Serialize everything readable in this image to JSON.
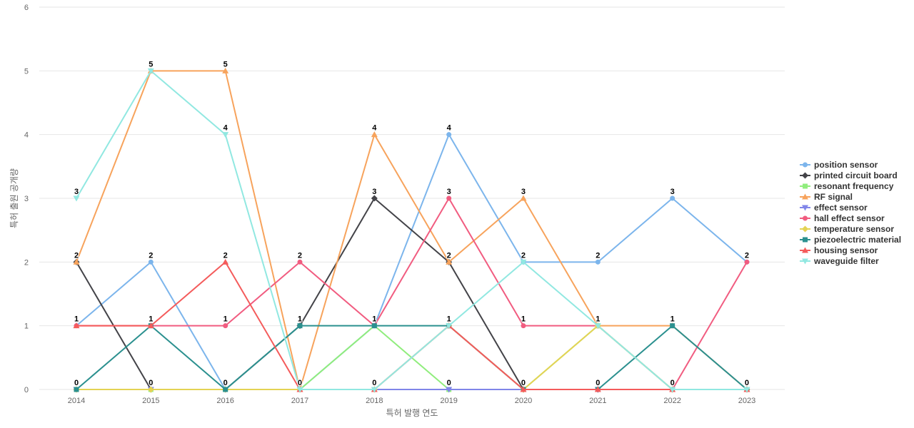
{
  "chart_data": {
    "type": "line",
    "title": "",
    "xlabel": "특허 발행 연도",
    "ylabel": "특허 출원 공개량",
    "x": [
      "2014",
      "2015",
      "2016",
      "2017",
      "2018",
      "2019",
      "2020",
      "2021",
      "2022",
      "2023"
    ],
    "ylim": [
      0,
      6
    ],
    "yticks": [
      "0",
      "1",
      "2",
      "3",
      "4",
      "5",
      "6"
    ],
    "grid": true,
    "legend_position": "right",
    "series": [
      {
        "name": "position sensor",
        "color": "#7cb5ec",
        "marker": "circle",
        "values": [
          1,
          2,
          0,
          0,
          1,
          4,
          2,
          2,
          3,
          2
        ]
      },
      {
        "name": "printed circuit board",
        "color": "#434348",
        "marker": "diamond",
        "values": [
          2,
          0,
          0,
          1,
          3,
          2,
          0,
          0,
          0,
          0
        ]
      },
      {
        "name": "resonant frequency",
        "color": "#90ed7d",
        "marker": "square",
        "values": [
          0,
          0,
          0,
          0,
          1,
          0,
          0,
          1,
          0,
          0
        ]
      },
      {
        "name": "RF signal",
        "color": "#f7a35c",
        "marker": "triangle",
        "values": [
          2,
          5,
          5,
          0,
          4,
          2,
          3,
          1,
          1,
          0
        ]
      },
      {
        "name": "effect sensor",
        "color": "#8085e9",
        "marker": "triangle-down",
        "values": [
          0,
          0,
          0,
          0,
          0,
          0,
          0,
          0,
          0,
          0
        ]
      },
      {
        "name": "hall effect sensor",
        "color": "#f15c80",
        "marker": "circle",
        "values": [
          1,
          1,
          1,
          2,
          1,
          3,
          1,
          1,
          0,
          2
        ]
      },
      {
        "name": "temperature sensor",
        "color": "#e4d354",
        "marker": "diamond",
        "values": [
          0,
          0,
          0,
          0,
          0,
          1,
          0,
          1,
          0,
          0
        ]
      },
      {
        "name": "piezoelectric material",
        "color": "#2b908f",
        "marker": "square",
        "values": [
          0,
          1,
          0,
          1,
          1,
          1,
          0,
          0,
          1,
          0
        ]
      },
      {
        "name": "housing sensor",
        "color": "#f45b5b",
        "marker": "triangle",
        "values": [
          1,
          1,
          2,
          0,
          0,
          1,
          0,
          0,
          0,
          0
        ]
      },
      {
        "name": "waveguide filter",
        "color": "#91e8e1",
        "marker": "triangle-down",
        "values": [
          3,
          5,
          4,
          0,
          0,
          1,
          2,
          1,
          0,
          0
        ]
      }
    ],
    "data_labels": [
      {
        "x": "2014",
        "values": [
          "3",
          "2",
          "1",
          "0"
        ]
      },
      {
        "x": "2015",
        "values": [
          "5",
          "2",
          "1",
          "0"
        ]
      },
      {
        "x": "2016",
        "values": [
          "5",
          "4",
          "2",
          "1",
          "0"
        ]
      },
      {
        "x": "2017",
        "values": [
          "2",
          "1",
          "0"
        ]
      },
      {
        "x": "2018",
        "values": [
          "4",
          "3",
          "1",
          "0"
        ]
      },
      {
        "x": "2019",
        "values": [
          "4",
          "3",
          "2",
          "1",
          "0"
        ]
      },
      {
        "x": "2020",
        "values": [
          "3",
          "2",
          "1",
          "0"
        ]
      },
      {
        "x": "2021",
        "values": [
          "2",
          "1",
          "0"
        ]
      },
      {
        "x": "2022",
        "values": [
          "3",
          "1",
          "0"
        ]
      },
      {
        "x": "2023",
        "values": [
          "2",
          "0"
        ]
      }
    ]
  }
}
